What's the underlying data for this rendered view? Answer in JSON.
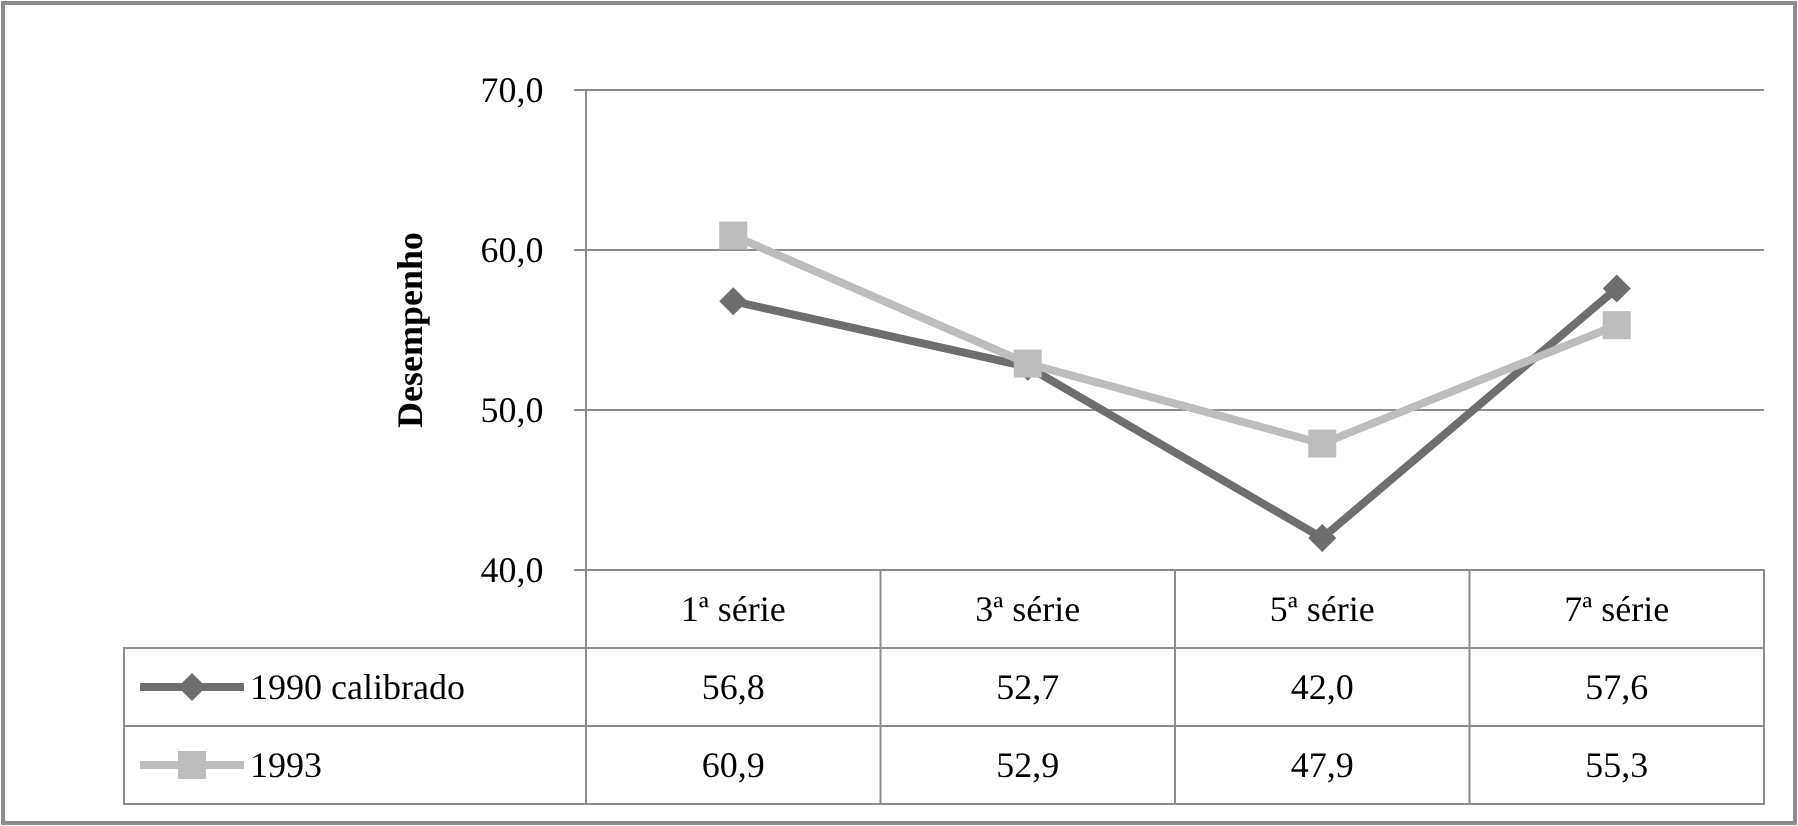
{
  "chart_data": {
    "type": "line",
    "ylabel": "Desempenho",
    "categories": [
      "1ª série",
      "3ª série",
      "5ª série",
      "7ª série"
    ],
    "ylim": [
      40,
      70
    ],
    "yticks": [
      {
        "value": 40,
        "label": "40,0"
      },
      {
        "value": 50,
        "label": "50,0"
      },
      {
        "value": 60,
        "label": "60,0"
      },
      {
        "value": 70,
        "label": "70,0"
      }
    ],
    "grid": "y",
    "legend": "bottom left",
    "series": [
      {
        "name": "1990 calibrado",
        "color": "#6e6e6e",
        "marker": "diamond",
        "values": [
          56.8,
          52.7,
          42.0,
          57.6
        ],
        "value_labels": [
          "56,8",
          "52,7",
          "42,0",
          "57,6"
        ]
      },
      {
        "name": "1993",
        "color": "#bdbdbd",
        "marker": "square",
        "values": [
          60.9,
          52.9,
          47.9,
          55.3
        ],
        "value_labels": [
          "60,9",
          "52,9",
          "47,9",
          "55,3"
        ]
      }
    ]
  }
}
